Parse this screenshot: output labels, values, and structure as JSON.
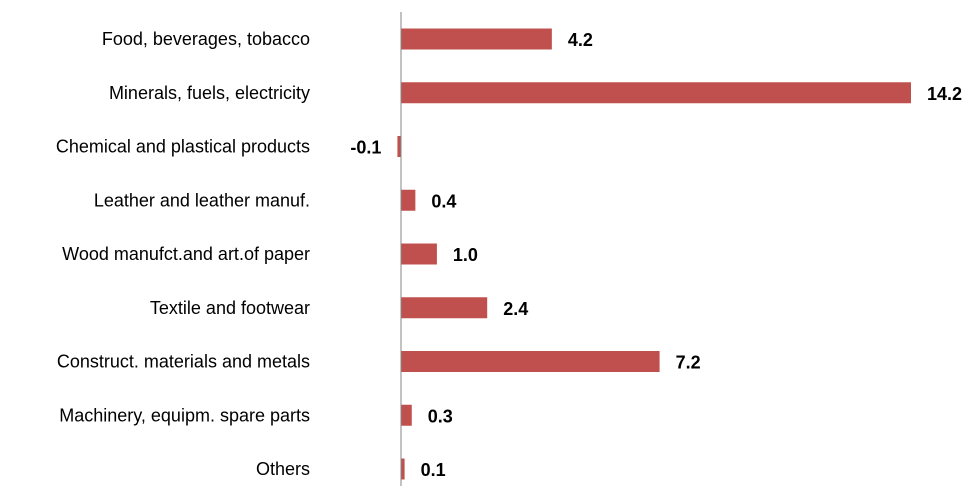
{
  "chart_data": {
    "type": "bar",
    "orientation": "horizontal",
    "categories": [
      "Food, beverages, tobacco",
      "Minerals, fuels, electricity",
      "Chemical and plastical products",
      "Leather and leather manuf.",
      "Wood manufct.and art.of paper",
      "Textile and footwear",
      "Construct. materials and metals",
      "Machinery, equipm. spare parts",
      "Others"
    ],
    "values": [
      4.2,
      14.2,
      -0.1,
      0.4,
      1.0,
      2.4,
      7.2,
      0.3,
      0.1
    ],
    "value_labels": [
      "4.2",
      "14.2",
      "-0.1",
      "0.4",
      "1.0",
      "2.4",
      "7.2",
      "0.3",
      "0.1"
    ],
    "title": "",
    "xlabel": "",
    "ylabel": "",
    "xlim": [
      -0.2,
      14.5
    ],
    "grid": false,
    "legend": "none",
    "colors": {
      "bar": "#C0504D",
      "axis": "#868686",
      "text": "#000000"
    }
  }
}
